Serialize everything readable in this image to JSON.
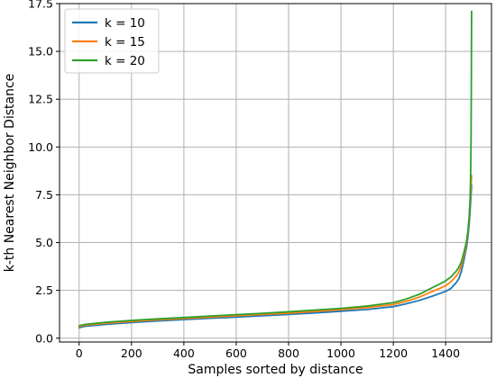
{
  "chart_data": {
    "type": "line",
    "title": "",
    "xlabel": "Samples sorted by distance",
    "ylabel": "k-th Nearest Neighbor Distance",
    "xlim": [
      -75,
      1575
    ],
    "ylim": [
      -0.2,
      17.5
    ],
    "xticks": [
      0,
      200,
      400,
      600,
      800,
      1000,
      1200,
      1400
    ],
    "yticks": [
      0.0,
      2.5,
      5.0,
      7.5,
      10.0,
      12.5,
      15.0,
      17.5
    ],
    "xtick_labels": [
      "0",
      "200",
      "400",
      "600",
      "800",
      "1000",
      "1200",
      "1400"
    ],
    "ytick_labels": [
      "0.0",
      "2.5",
      "5.0",
      "7.5",
      "10.0",
      "12.5",
      "15.0",
      "17.5"
    ],
    "grid": true,
    "legend_position": "top-left",
    "series": [
      {
        "name": "k = 10",
        "color": "#1f77b4",
        "x": [
          0,
          20,
          100,
          200,
          300,
          400,
          500,
          600,
          700,
          800,
          900,
          1000,
          1100,
          1200,
          1250,
          1300,
          1350,
          1380,
          1400,
          1420,
          1440,
          1450,
          1460,
          1470,
          1480,
          1485,
          1490,
          1493,
          1496,
          1499
        ],
        "y": [
          0.55,
          0.62,
          0.72,
          0.82,
          0.9,
          0.97,
          1.04,
          1.1,
          1.17,
          1.24,
          1.32,
          1.41,
          1.5,
          1.65,
          1.8,
          1.98,
          2.2,
          2.35,
          2.45,
          2.6,
          2.9,
          3.1,
          3.5,
          4.1,
          4.8,
          5.3,
          6.0,
          6.6,
          7.3,
          8.0
        ]
      },
      {
        "name": "k = 15",
        "color": "#ff7f0e",
        "x": [
          0,
          20,
          100,
          200,
          300,
          400,
          500,
          600,
          700,
          800,
          900,
          1000,
          1100,
          1200,
          1250,
          1300,
          1350,
          1380,
          1400,
          1420,
          1440,
          1450,
          1460,
          1470,
          1480,
          1485,
          1490,
          1493,
          1496,
          1499
        ],
        "y": [
          0.6,
          0.68,
          0.78,
          0.88,
          0.96,
          1.03,
          1.1,
          1.17,
          1.24,
          1.31,
          1.4,
          1.49,
          1.6,
          1.76,
          1.93,
          2.15,
          2.45,
          2.62,
          2.75,
          2.95,
          3.25,
          3.45,
          3.8,
          4.35,
          5.0,
          5.5,
          6.3,
          7.0,
          7.8,
          8.5
        ]
      },
      {
        "name": "k = 20",
        "color": "#2ca02c",
        "x": [
          0,
          20,
          100,
          200,
          300,
          400,
          500,
          600,
          700,
          800,
          900,
          1000,
          1100,
          1200,
          1250,
          1300,
          1350,
          1380,
          1400,
          1420,
          1440,
          1450,
          1460,
          1470,
          1480,
          1485,
          1490,
          1493,
          1495,
          1497,
          1498,
          1499
        ],
        "y": [
          0.65,
          0.72,
          0.83,
          0.93,
          1.01,
          1.08,
          1.16,
          1.23,
          1.3,
          1.38,
          1.47,
          1.56,
          1.68,
          1.86,
          2.05,
          2.3,
          2.65,
          2.85,
          3.0,
          3.2,
          3.5,
          3.7,
          4.0,
          4.5,
          5.1,
          5.6,
          6.4,
          7.2,
          8.2,
          10.5,
          13.5,
          17.1
        ]
      }
    ]
  }
}
